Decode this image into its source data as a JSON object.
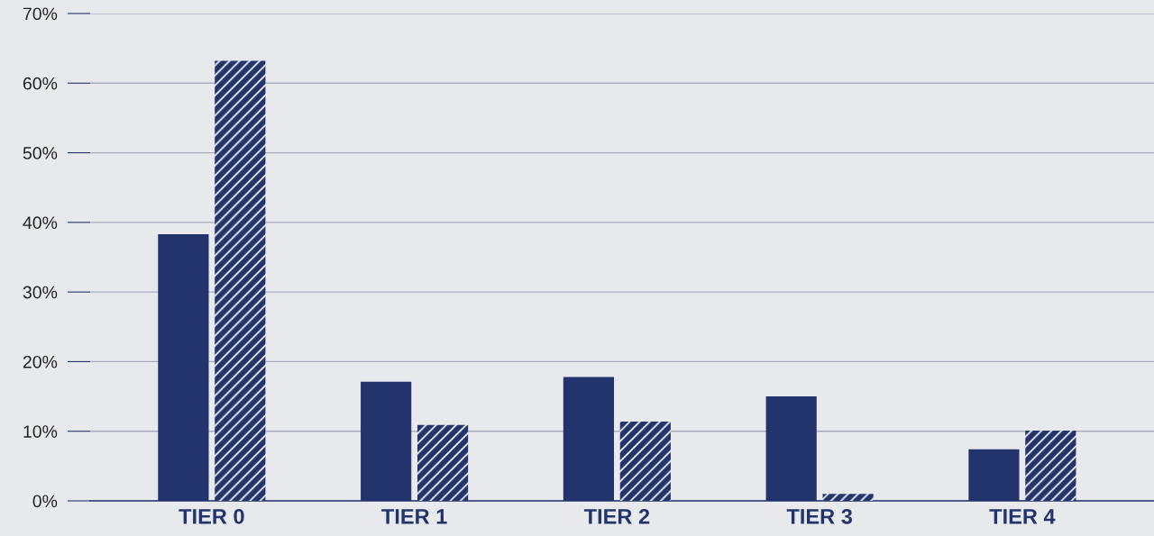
{
  "chart_data": {
    "type": "bar",
    "categories": [
      "TIER 0",
      "TIER 1",
      "TIER 2",
      "TIER 3",
      "TIER 4"
    ],
    "series": [
      {
        "color": "#22346b",
        "values": [
          38.3,
          17.1,
          17.8,
          15.0,
          7.4
        ]
      },
      {
        "color": "#22346b",
        "values": [
          63.2,
          10.9,
          11.4,
          1.0,
          10.1
        ]
      }
    ],
    "ylim": [
      0,
      70
    ],
    "yticks": [
      {
        "value": 0,
        "label": "0%"
      },
      {
        "value": 10,
        "label": "10%"
      },
      {
        "value": 20,
        "label": "20%"
      },
      {
        "value": 30,
        "label": "30%"
      },
      {
        "value": 40,
        "label": "40%"
      },
      {
        "value": 50,
        "label": "50%"
      },
      {
        "value": 60,
        "label": "60%"
      },
      {
        "value": 70,
        "label": "70%"
      }
    ],
    "grid": "y",
    "legend": false
  }
}
